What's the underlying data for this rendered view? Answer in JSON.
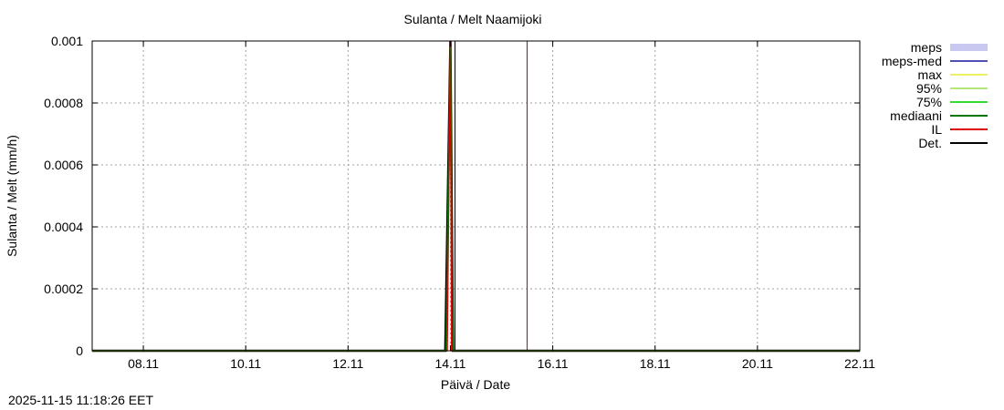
{
  "chart_data": {
    "type": "line",
    "title": "Sulanta / Melt  Naamijoki",
    "xlabel": "Päivä / Date",
    "ylabel": "Sulanta / Melt (mm/h)",
    "ylim": [
      0,
      0.001
    ],
    "xlim_days": [
      7.0,
      22.0
    ],
    "x_ticks": [
      {
        "day": 8,
        "label": "08.11"
      },
      {
        "day": 10,
        "label": "10.11"
      },
      {
        "day": 12,
        "label": "12.11"
      },
      {
        "day": 14,
        "label": "14.11"
      },
      {
        "day": 16,
        "label": "16.11"
      },
      {
        "day": 18,
        "label": "18.11"
      },
      {
        "day": 20,
        "label": "20.11"
      },
      {
        "day": 22,
        "label": "22.11"
      }
    ],
    "y_ticks": [
      {
        "value": 0,
        "label": "0"
      },
      {
        "value": 0.0002,
        "label": "0.0002"
      },
      {
        "value": 0.0004,
        "label": "0.0004"
      },
      {
        "value": 0.0006,
        "label": "0.0006"
      },
      {
        "value": 0.0008,
        "label": "0.0008"
      },
      {
        "value": 0.001,
        "label": "0.001"
      }
    ],
    "grid": true,
    "legend_position": "right",
    "legend": [
      {
        "label": "meps",
        "color": "#c8c8f0",
        "style": "band"
      },
      {
        "label": "meps-med",
        "color": "#5050b4",
        "style": "line"
      },
      {
        "label": "max",
        "color": "#f0f064",
        "style": "line"
      },
      {
        "label": "95%",
        "color": "#b4e678",
        "style": "line"
      },
      {
        "label": "75%",
        "color": "#32dc32",
        "style": "line"
      },
      {
        "label": "mediaani",
        "color": "#007800",
        "style": "line"
      },
      {
        "label": "IL",
        "color": "#dc0000",
        "style": "line"
      },
      {
        "label": "Det.",
        "color": "#000000",
        "style": "line"
      }
    ],
    "series": [
      {
        "name": "Det.",
        "color": "#000000",
        "x": [
          7.0,
          13.9,
          14.0,
          14.05,
          22.0
        ],
        "y": [
          0,
          0,
          0.001,
          0,
          0
        ]
      },
      {
        "name": "mediaani",
        "color": "#007800",
        "x": [
          7.0,
          13.92,
          14.0,
          14.04,
          22.0
        ],
        "y": [
          0,
          0,
          0.00098,
          0,
          0
        ]
      },
      {
        "name": "IL",
        "color": "#dc0000",
        "x": [
          7.0,
          13.94,
          14.0,
          14.02,
          22.0
        ],
        "y": [
          0,
          0,
          0.001,
          0,
          0
        ]
      }
    ],
    "vertical_markers": [
      {
        "day": 14.09,
        "color": "#000000"
      },
      {
        "day": 15.5,
        "color": "#b40000"
      }
    ]
  },
  "timestamp": "2025-11-15 11:18:26 EET"
}
